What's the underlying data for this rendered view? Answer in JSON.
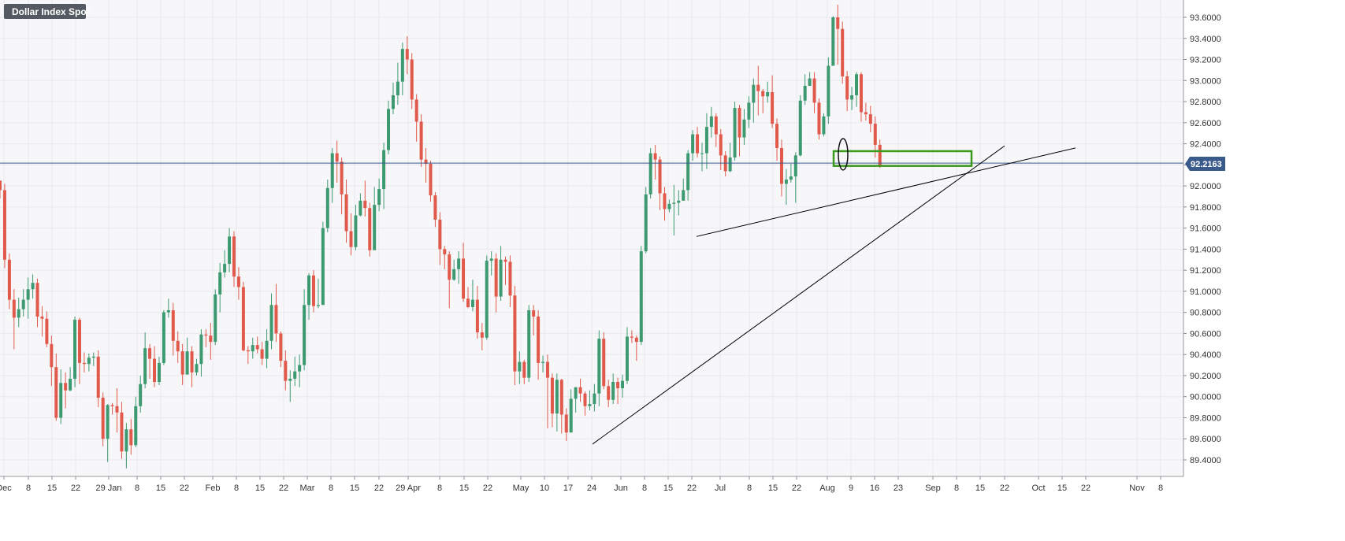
{
  "chart_data": {
    "type": "candlestick",
    "title": "Dollar Index Spot",
    "ylim": [
      89.3,
      93.74
    ],
    "y_ticks": [
      "93.6000",
      "93.4000",
      "93.2000",
      "93.0000",
      "92.8000",
      "92.6000",
      "92.4000",
      "92.2000",
      "92.0000",
      "91.8000",
      "91.6000",
      "91.4000",
      "91.2000",
      "91.0000",
      "90.8000",
      "90.6000",
      "90.4000",
      "90.2000",
      "90.0000",
      "89.8000",
      "89.6000",
      "89.4000"
    ],
    "x_ticks": [
      "Dec",
      "8",
      "15",
      "22",
      "29 Jan",
      "8",
      "15",
      "22",
      "Feb",
      "8",
      "15",
      "22",
      "Mar",
      "8",
      "15",
      "22",
      "29 Apr",
      "8",
      "15",
      "22",
      "May",
      "10",
      "17",
      "24",
      "Jun",
      "8",
      "15",
      "22",
      "Jul",
      "8",
      "15",
      "22",
      "Aug",
      "9",
      "16",
      "23",
      "Sep",
      "8",
      "15",
      "22",
      "Oct",
      "15",
      "22",
      "Nov",
      "8"
    ],
    "grid": true,
    "current_price": 92.2163,
    "current_price_label": "92.2163",
    "colors": {
      "up": "#3d9970",
      "down": "#e0594a",
      "hline": "#3a5a8c",
      "box": "#3a9a1a",
      "trendline": "#000000",
      "grid": "#e8e8ee",
      "badge": "#555a62"
    },
    "candles": [
      [
        92.05,
        91.96,
        92.05,
        91.88
      ],
      [
        91.96,
        91.3,
        92.02,
        91.22
      ],
      [
        91.3,
        90.92,
        91.36,
        90.83
      ],
      [
        90.92,
        90.75,
        91.02,
        90.45
      ],
      [
        90.75,
        90.83,
        90.94,
        90.66
      ],
      [
        90.83,
        90.92,
        91.02,
        90.76
      ],
      [
        90.92,
        91.02,
        91.13,
        90.74
      ],
      [
        91.02,
        91.08,
        91.16,
        90.93
      ],
      [
        91.08,
        90.76,
        91.12,
        90.66
      ],
      [
        90.76,
        90.74,
        90.86,
        90.57
      ],
      [
        90.74,
        90.5,
        90.81,
        90.47
      ],
      [
        90.5,
        90.28,
        90.58,
        90.1
      ],
      [
        90.28,
        89.8,
        90.41,
        89.77
      ],
      [
        89.8,
        90.13,
        90.26,
        89.74
      ],
      [
        90.13,
        90.06,
        90.23,
        89.89
      ],
      [
        90.06,
        90.17,
        90.28,
        90.05
      ],
      [
        90.17,
        90.73,
        90.76,
        90.09
      ],
      [
        90.73,
        90.32,
        90.75,
        90.12
      ],
      [
        90.32,
        90.31,
        90.42,
        90.23
      ],
      [
        90.31,
        90.37,
        90.41,
        90.24
      ],
      [
        90.37,
        90.38,
        90.42,
        90.29
      ],
      [
        90.38,
        89.99,
        90.44,
        89.9
      ],
      [
        89.99,
        89.6,
        90.04,
        89.53
      ],
      [
        89.6,
        89.92,
        89.93,
        89.38
      ],
      [
        89.92,
        89.91,
        89.94,
        89.83
      ],
      [
        89.91,
        89.85,
        90.08,
        89.66
      ],
      [
        89.85,
        89.48,
        89.95,
        89.41
      ],
      [
        89.48,
        89.69,
        89.75,
        89.32
      ],
      [
        89.69,
        89.54,
        89.79,
        89.45
      ],
      [
        89.54,
        89.91,
        90.0,
        89.52
      ],
      [
        89.91,
        90.12,
        90.2,
        89.85
      ],
      [
        90.12,
        90.46,
        90.61,
        90.08
      ],
      [
        90.46,
        90.36,
        90.5,
        90.17
      ],
      [
        90.36,
        90.14,
        90.48,
        90.09
      ],
      [
        90.14,
        90.32,
        90.38,
        90.11
      ],
      [
        90.32,
        90.8,
        90.82,
        90.3
      ],
      [
        90.8,
        90.82,
        90.93,
        90.75
      ],
      [
        90.82,
        90.53,
        90.89,
        90.39
      ],
      [
        90.53,
        90.43,
        90.62,
        90.32
      ],
      [
        90.43,
        90.21,
        90.5,
        90.11
      ],
      [
        90.21,
        90.43,
        90.56,
        90.21
      ],
      [
        90.43,
        90.23,
        90.48,
        90.09
      ],
      [
        90.23,
        90.31,
        90.36,
        90.2
      ],
      [
        90.31,
        90.59,
        90.64,
        90.19
      ],
      [
        90.59,
        90.58,
        90.64,
        90.47
      ],
      [
        90.58,
        90.52,
        90.7,
        90.35
      ],
      [
        90.52,
        90.97,
        91.02,
        90.49
      ],
      [
        90.97,
        91.18,
        91.27,
        90.8
      ],
      [
        91.18,
        91.26,
        91.39,
        91.13
      ],
      [
        91.26,
        91.52,
        91.6,
        91.18
      ],
      [
        91.52,
        91.14,
        91.57,
        91.04
      ],
      [
        91.14,
        91.04,
        91.23,
        90.92
      ],
      [
        91.04,
        90.44,
        91.09,
        90.43
      ],
      [
        90.44,
        90.43,
        90.48,
        90.31
      ],
      [
        90.43,
        90.49,
        90.56,
        90.36
      ],
      [
        90.49,
        90.45,
        90.57,
        90.41
      ],
      [
        90.45,
        90.36,
        90.52,
        90.3
      ],
      [
        90.36,
        90.53,
        90.64,
        90.27
      ],
      [
        90.53,
        90.87,
        90.98,
        90.45
      ],
      [
        90.87,
        90.6,
        91.07,
        90.52
      ],
      [
        90.6,
        90.34,
        90.62,
        90.28
      ],
      [
        90.34,
        90.15,
        90.44,
        90.06
      ],
      [
        90.15,
        90.17,
        90.25,
        89.95
      ],
      [
        90.17,
        90.24,
        90.38,
        90.1
      ],
      [
        90.24,
        90.3,
        90.4,
        90.09
      ],
      [
        90.3,
        90.87,
        91.02,
        90.25
      ],
      [
        90.87,
        91.15,
        91.17,
        90.73
      ],
      [
        91.15,
        90.86,
        91.2,
        90.8
      ],
      [
        90.86,
        90.87,
        91.12,
        90.84
      ],
      [
        90.87,
        91.6,
        91.66,
        90.88
      ],
      [
        91.6,
        91.98,
        92.06,
        91.56
      ],
      [
        91.98,
        92.31,
        92.36,
        91.84
      ],
      [
        92.31,
        92.23,
        92.43,
        92.03
      ],
      [
        92.23,
        91.92,
        92.27,
        91.73
      ],
      [
        91.92,
        91.57,
        92.06,
        91.46
      ],
      [
        91.57,
        91.42,
        91.74,
        91.34
      ],
      [
        91.42,
        91.72,
        91.82,
        91.39
      ],
      [
        91.72,
        91.86,
        91.93,
        91.71
      ],
      [
        91.86,
        91.79,
        92.05,
        91.71
      ],
      [
        91.79,
        91.39,
        91.84,
        91.33
      ],
      [
        91.39,
        91.82,
        91.99,
        91.77
      ],
      [
        91.82,
        91.97,
        92.07,
        91.76
      ],
      [
        91.97,
        92.34,
        92.41,
        91.78
      ],
      [
        92.34,
        92.73,
        92.81,
        92.3
      ],
      [
        92.73,
        92.86,
        92.98,
        92.68
      ],
      [
        92.86,
        92.99,
        93.17,
        92.77
      ],
      [
        92.99,
        93.3,
        93.36,
        92.86
      ],
      [
        93.3,
        93.2,
        93.42,
        93.06
      ],
      [
        93.2,
        92.82,
        93.26,
        92.73
      ],
      [
        92.82,
        92.61,
        92.87,
        92.42
      ],
      [
        92.61,
        92.25,
        92.68,
        92.18
      ],
      [
        92.25,
        92.21,
        92.36,
        92.03
      ],
      [
        92.21,
        91.91,
        92.24,
        91.85
      ],
      [
        91.91,
        91.68,
        91.94,
        91.61
      ],
      [
        91.68,
        91.4,
        91.75,
        91.25
      ],
      [
        91.4,
        91.35,
        91.43,
        91.21
      ],
      [
        91.35,
        91.11,
        91.38,
        90.84
      ],
      [
        91.11,
        91.21,
        91.3,
        91.1
      ],
      [
        91.21,
        91.31,
        91.38,
        91.07
      ],
      [
        91.31,
        90.93,
        91.46,
        90.9
      ],
      [
        90.93,
        90.85,
        91.04,
        90.84
      ],
      [
        90.85,
        90.92,
        91.11,
        90.81
      ],
      [
        90.92,
        90.61,
        91.05,
        90.55
      ],
      [
        90.61,
        90.56,
        90.7,
        90.44
      ],
      [
        90.56,
        91.29,
        91.34,
        90.54
      ],
      [
        91.29,
        91.31,
        91.38,
        91.15
      ],
      [
        91.31,
        90.95,
        91.36,
        90.8
      ],
      [
        90.95,
        91.3,
        91.43,
        90.91
      ],
      [
        91.3,
        91.28,
        91.33,
        91.06
      ],
      [
        91.28,
        90.96,
        91.34,
        90.85
      ],
      [
        90.96,
        90.24,
        91.05,
        90.11
      ],
      [
        90.24,
        90.33,
        90.43,
        90.12
      ],
      [
        90.33,
        90.18,
        90.35,
        90.12
      ],
      [
        90.18,
        90.82,
        90.87,
        90.14
      ],
      [
        90.82,
        90.76,
        90.87,
        90.58
      ],
      [
        90.76,
        90.32,
        90.82,
        90.16
      ],
      [
        90.32,
        90.33,
        90.39,
        90.23
      ],
      [
        90.33,
        90.18,
        90.4,
        89.7
      ],
      [
        90.18,
        89.84,
        90.22,
        89.71
      ],
      [
        89.84,
        90.16,
        90.22,
        89.67
      ],
      [
        90.16,
        89.83,
        90.17,
        89.65
      ],
      [
        89.83,
        89.66,
        89.89,
        89.58
      ],
      [
        89.66,
        89.98,
        90.07,
        89.66
      ],
      [
        89.98,
        90.09,
        90.09,
        89.85
      ],
      [
        90.09,
        90.03,
        90.17,
        89.95
      ],
      [
        90.03,
        89.91,
        90.05,
        89.82
      ],
      [
        89.91,
        89.93,
        90.06,
        89.87
      ],
      [
        89.93,
        90.03,
        90.12,
        89.86
      ],
      [
        90.03,
        90.55,
        90.63,
        89.91
      ],
      [
        90.55,
        90.1,
        90.61,
        90.07
      ],
      [
        90.1,
        89.97,
        90.16,
        89.9
      ],
      [
        89.97,
        90.14,
        90.22,
        89.93
      ],
      [
        90.14,
        90.08,
        90.18,
        89.93
      ],
      [
        90.08,
        90.15,
        90.21,
        89.99
      ],
      [
        90.15,
        90.57,
        90.66,
        90.12
      ],
      [
        90.57,
        90.56,
        90.63,
        90.51
      ],
      [
        90.56,
        90.52,
        90.58,
        90.34
      ],
      [
        90.52,
        91.38,
        91.43,
        90.49
      ],
      [
        91.38,
        91.92,
        91.99,
        91.36
      ],
      [
        91.92,
        92.31,
        92.36,
        91.88
      ],
      [
        92.31,
        92.25,
        92.39,
        92.06
      ],
      [
        92.25,
        91.93,
        92.28,
        91.77
      ],
      [
        91.93,
        91.78,
        91.99,
        91.67
      ],
      [
        91.78,
        91.83,
        91.87,
        91.75
      ],
      [
        91.83,
        91.84,
        92.01,
        91.53
      ],
      [
        91.84,
        91.86,
        91.96,
        91.72
      ],
      [
        91.86,
        91.96,
        92.07,
        91.86
      ],
      [
        91.96,
        92.31,
        92.34,
        91.86
      ],
      [
        92.31,
        92.49,
        92.53,
        92.24
      ],
      [
        92.49,
        92.31,
        92.56,
        92.27
      ],
      [
        92.31,
        92.31,
        92.41,
        92.14
      ],
      [
        92.31,
        92.56,
        92.69,
        92.16
      ],
      [
        92.56,
        92.66,
        92.75,
        92.46
      ],
      [
        92.66,
        92.49,
        92.69,
        92.37
      ],
      [
        92.49,
        92.29,
        92.54,
        92.15
      ],
      [
        92.29,
        92.14,
        92.33,
        92.09
      ],
      [
        92.14,
        92.27,
        92.41,
        92.13
      ],
      [
        92.27,
        92.74,
        92.8,
        92.24
      ],
      [
        92.74,
        92.46,
        92.77,
        92.28
      ],
      [
        92.46,
        92.63,
        92.73,
        92.39
      ],
      [
        92.63,
        92.79,
        92.85,
        92.55
      ],
      [
        92.79,
        92.96,
        93.02,
        92.6
      ],
      [
        92.96,
        92.9,
        93.14,
        92.67
      ],
      [
        92.9,
        92.85,
        92.92,
        92.69
      ],
      [
        92.85,
        92.89,
        92.99,
        92.79
      ],
      [
        92.89,
        92.59,
        93.05,
        92.55
      ],
      [
        92.59,
        92.36,
        92.64,
        92.24
      ],
      [
        92.36,
        92.02,
        92.44,
        91.9
      ],
      [
        92.02,
        92.06,
        92.16,
        91.82
      ],
      [
        92.06,
        92.09,
        92.21,
        92.03
      ],
      [
        92.09,
        92.29,
        92.32,
        91.84
      ],
      [
        92.29,
        92.81,
        92.86,
        92.28
      ],
      [
        92.81,
        92.95,
        93.06,
        92.77
      ],
      [
        92.95,
        93.02,
        93.08,
        92.98
      ],
      [
        93.02,
        92.79,
        93.08,
        92.69
      ],
      [
        92.79,
        92.49,
        92.83,
        92.44
      ],
      [
        92.49,
        92.66,
        92.69,
        92.47
      ],
      [
        92.66,
        93.14,
        93.22,
        92.59
      ],
      [
        93.14,
        93.6,
        93.61,
        93.14
      ],
      [
        93.6,
        93.49,
        93.72,
        93.15
      ],
      [
        93.49,
        93.04,
        93.56,
        92.97
      ],
      [
        93.04,
        92.82,
        93.09,
        92.71
      ],
      [
        92.82,
        92.86,
        92.94,
        92.72
      ],
      [
        92.86,
        93.06,
        93.08,
        92.75
      ],
      [
        93.06,
        92.7,
        93.08,
        92.61
      ],
      [
        92.7,
        92.68,
        92.79,
        92.62
      ],
      [
        92.68,
        92.59,
        92.76,
        92.51
      ],
      [
        92.59,
        92.39,
        92.66,
        92.27
      ],
      [
        92.39,
        92.19,
        92.44,
        92.17
      ]
    ],
    "annotations": {
      "trendline_1": [
        [
          89.55,
          "May 24"
        ],
        [
          92.38,
          "Sep 22"
        ]
      ],
      "trendline_2": [
        [
          91.52,
          "Jun 22"
        ],
        [
          92.36,
          "Oct 15"
        ]
      ],
      "green_box": [
        92.19,
        92.33
      ],
      "ellipse_center": 92.3
    }
  }
}
